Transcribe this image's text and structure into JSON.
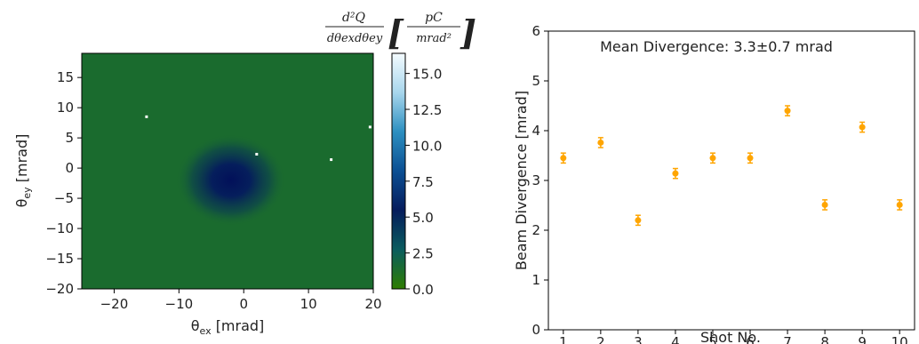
{
  "chart_data": [
    {
      "type": "heatmap",
      "xlabel": "θ",
      "xlabel_sub": "ex",
      "xlabel_unit": "[mrad]",
      "ylabel": "θ",
      "ylabel_sub": "ey",
      "ylabel_unit": "[mrad]",
      "xlim": [
        -25,
        20
      ],
      "ylim": [
        -20,
        19
      ],
      "xticks": [
        -20,
        -10,
        0,
        10,
        20
      ],
      "yticks": [
        -20,
        -15,
        -10,
        -5,
        0,
        5,
        10,
        15
      ],
      "colorbar": {
        "label_num": "d²Q",
        "label_den": "dθexdθey",
        "unit_num": "pC",
        "unit_den": "mrad²",
        "range": [
          0,
          16.4
        ],
        "ticks": [
          "0.0",
          "2.5",
          "5.0",
          "7.5",
          "10.0",
          "12.5",
          "15.0"
        ],
        "colors": [
          "#2e7d00",
          "#0a5c5e",
          "#051c5c",
          "#0b4f93",
          "#2c8fc0",
          "#a8d6ec",
          "#f4fbff"
        ]
      },
      "background_color": "#1a6b2e",
      "spot_center": [
        -2,
        -2
      ],
      "hot_pixels": [
        [
          -15,
          8.5
        ],
        [
          2,
          2.3
        ],
        [
          13.5,
          1.4
        ],
        [
          19.5,
          6.8
        ]
      ]
    },
    {
      "type": "scatter",
      "title": "Mean Divergence: 3.3±0.7 mrad",
      "xlabel": "Shot No.",
      "ylabel": "Beam Divergence [mrad]",
      "xlim": [
        0.6,
        10.4
      ],
      "ylim": [
        0,
        6
      ],
      "xticks": [
        1,
        2,
        3,
        4,
        5,
        6,
        7,
        8,
        9,
        10
      ],
      "yticks": [
        0,
        1,
        2,
        3,
        4,
        5,
        6
      ],
      "color": "#ffa500",
      "points": [
        {
          "x": 1,
          "y": 3.45,
          "err": 0.1
        },
        {
          "x": 2,
          "y": 3.76,
          "err": 0.1
        },
        {
          "x": 3,
          "y": 2.2,
          "err": 0.1
        },
        {
          "x": 4,
          "y": 3.14,
          "err": 0.1
        },
        {
          "x": 5,
          "y": 3.45,
          "err": 0.1
        },
        {
          "x": 6,
          "y": 3.45,
          "err": 0.1
        },
        {
          "x": 7,
          "y": 4.4,
          "err": 0.1
        },
        {
          "x": 8,
          "y": 2.51,
          "err": 0.1
        },
        {
          "x": 9,
          "y": 4.07,
          "err": 0.1
        },
        {
          "x": 10,
          "y": 2.51,
          "err": 0.1
        }
      ]
    }
  ]
}
